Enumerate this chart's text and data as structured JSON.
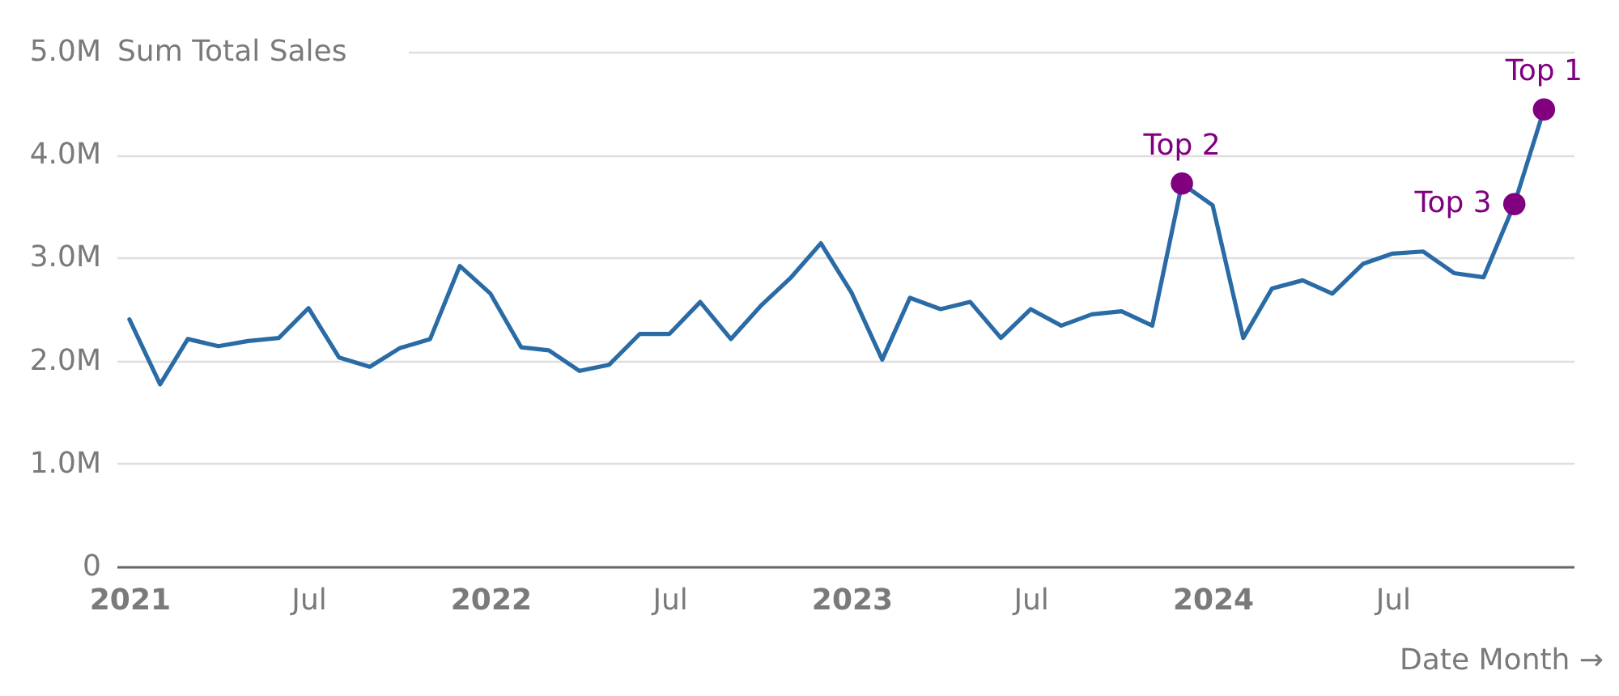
{
  "chart_data": {
    "type": "line",
    "ylabel": "Sum Total Sales",
    "xlabel": "Date Month →",
    "x": [
      "2021-01",
      "2021-02",
      "2021-03",
      "2021-04",
      "2021-05",
      "2021-06",
      "2021-07",
      "2021-08",
      "2021-09",
      "2021-10",
      "2021-11",
      "2021-12",
      "2022-01",
      "2022-02",
      "2022-03",
      "2022-04",
      "2022-05",
      "2022-06",
      "2022-07",
      "2022-08",
      "2022-09",
      "2022-10",
      "2022-11",
      "2022-12",
      "2023-01",
      "2023-02",
      "2023-03",
      "2023-04",
      "2023-05",
      "2023-06",
      "2023-07",
      "2023-08",
      "2023-09",
      "2023-10",
      "2023-11",
      "2023-12",
      "2024-01",
      "2024-02",
      "2024-03",
      "2024-04",
      "2024-05",
      "2024-06",
      "2024-07",
      "2024-08",
      "2024-09",
      "2024-10",
      "2024-11",
      "2024-12"
    ],
    "series": [
      {
        "color": "#2a6ba6",
        "values": [
          2400000,
          1770000,
          2210000,
          2140000,
          2190000,
          2220000,
          2510000,
          2030000,
          1940000,
          2120000,
          2210000,
          2920000,
          2650000,
          2130000,
          2100000,
          1900000,
          1960000,
          2260000,
          2260000,
          2570000,
          2210000,
          2530000,
          2810000,
          3140000,
          2660000,
          2010000,
          2610000,
          2500000,
          2570000,
          2220000,
          2500000,
          2340000,
          2450000,
          2480000,
          2340000,
          3720000,
          3510000,
          2220000,
          2700000,
          2780000,
          2650000,
          2940000,
          3040000,
          3060000,
          2850000,
          2810000,
          3520000,
          4440000
        ]
      },
      {
        "type": "scatter",
        "color": "#800080",
        "marker": "circle",
        "x": [
          "2023-12",
          "2024-11",
          "2024-12"
        ],
        "values": [
          3720000,
          3520000,
          4440000
        ]
      }
    ],
    "annotations": [
      {
        "text": "Top 1",
        "x": "2024-12",
        "y": 4440000
      },
      {
        "text": "Top 2",
        "x": "2023-12",
        "y": 3720000
      },
      {
        "text": "Top 3",
        "x": "2024-11",
        "y": 3520000
      }
    ],
    "xlim": [
      "2020-12-19",
      "2024-12-31"
    ],
    "xticks": [
      {
        "value": "2021-01",
        "label": "2021"
      },
      {
        "value": "2021-07",
        "label": "Jul"
      },
      {
        "value": "2022-01",
        "label": "2022"
      },
      {
        "value": "2022-07",
        "label": "Jul"
      },
      {
        "value": "2023-01",
        "label": "2023"
      },
      {
        "value": "2023-07",
        "label": "Jul"
      },
      {
        "value": "2024-01",
        "label": "2024"
      },
      {
        "value": "2024-07",
        "label": "Jul"
      }
    ],
    "ylim": [
      0,
      5000000
    ],
    "yticks": [
      {
        "value": 0,
        "label": "0"
      },
      {
        "value": 1000000,
        "label": "1.0M"
      },
      {
        "value": 2000000,
        "label": "2.0M"
      },
      {
        "value": 3000000,
        "label": "3.0M"
      },
      {
        "value": 4000000,
        "label": "4.0M"
      },
      {
        "value": 5000000,
        "label": "5.0M"
      }
    ],
    "grid": "y"
  }
}
